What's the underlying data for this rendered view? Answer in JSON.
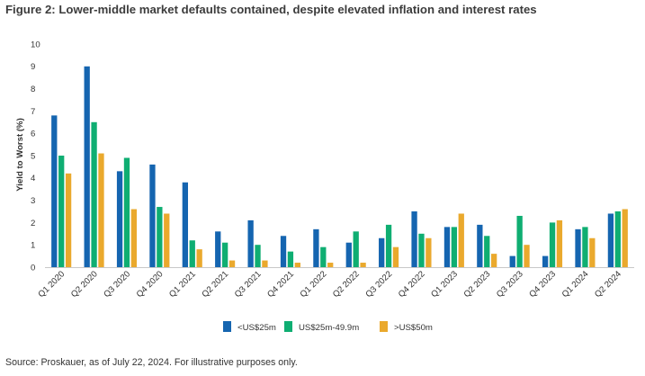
{
  "colors": {
    "series": [
      "#1565b0",
      "#0fae72",
      "#eaa92d"
    ],
    "axis": "#c8c8c8",
    "text": "#333333",
    "title": "#3c3c3c"
  },
  "chart_data": {
    "type": "bar",
    "title": "Figure 2: Lower-middle market defaults contained, despite elevated inflation and interest rates",
    "ylabel": "Yield to Worst (%)",
    "xlabel": "",
    "ylim": [
      0,
      10
    ],
    "yticks": [
      "0",
      "1",
      "2",
      "3",
      "4",
      "5",
      "6",
      "7",
      "8",
      "9",
      "10"
    ],
    "grid": false,
    "legend_position": "bottom",
    "categories": [
      "Q1 2020",
      "Q2 2020",
      "Q3 2020",
      "Q4 2020",
      "Q1 2021",
      "Q2 2021",
      "Q3 2021",
      "Q4 2021",
      "Q1 2022",
      "Q2 2022",
      "Q3 2022",
      "Q4 2022",
      "Q1 2023",
      "Q2 2023",
      "Q3 2023",
      "Q4 2023",
      "Q1 2024",
      "Q2 2024"
    ],
    "series": [
      {
        "name": "<US$25m",
        "values": [
          6.8,
          9.0,
          4.3,
          4.6,
          3.8,
          1.6,
          2.1,
          1.4,
          1.7,
          1.1,
          1.3,
          2.5,
          1.8,
          1.9,
          0.5,
          0.5,
          1.7,
          2.4
        ]
      },
      {
        "name": "US$25m-49.9m",
        "values": [
          5.0,
          6.5,
          4.9,
          2.7,
          1.2,
          1.1,
          1.0,
          0.7,
          0.9,
          1.6,
          1.9,
          1.5,
          1.8,
          1.4,
          2.3,
          2.0,
          1.8,
          2.5
        ]
      },
      {
        "name": ">US$50m",
        "values": [
          4.2,
          5.1,
          2.6,
          2.4,
          0.8,
          0.3,
          0.3,
          0.2,
          0.2,
          0.2,
          0.9,
          1.3,
          2.4,
          0.6,
          1.0,
          2.1,
          1.3,
          2.6
        ]
      }
    ]
  },
  "footer": {
    "source": "Source: Proskauer, as of July 22, 2024. For illustrative purposes only."
  }
}
